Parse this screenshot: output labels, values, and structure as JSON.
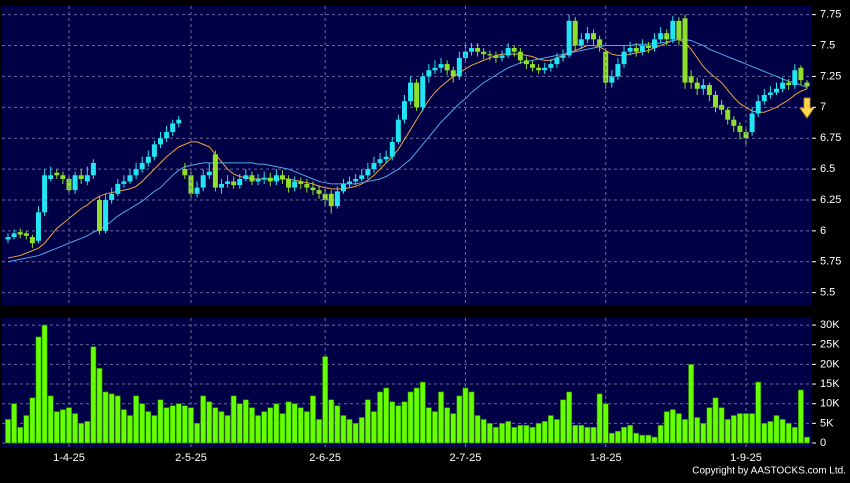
{
  "copyright": "Copyright by AASTOCKS.com Ltd.",
  "chart_data": [
    {
      "type": "candlestick",
      "up_color": "#22e4f2",
      "down_color": "#8ee02a",
      "grid": true,
      "ylim": [
        5.4,
        7.82
      ],
      "yticks": [
        5.5,
        5.75,
        6,
        6.25,
        6.5,
        6.75,
        7,
        7.25,
        7.5,
        7.75
      ],
      "open": [
        5.93,
        5.95,
        5.99,
        5.98,
        5.95,
        5.92,
        6.15,
        6.42,
        6.47,
        6.45,
        6.42,
        6.33,
        6.45,
        6.4,
        6.45,
        6.25,
        6.0,
        6.25,
        6.3,
        6.38,
        6.4,
        6.45,
        6.5,
        6.55,
        6.6,
        6.7,
        6.75,
        6.8,
        6.87,
        6.5,
        6.45,
        6.3,
        6.35,
        6.45,
        6.62,
        6.35,
        6.38,
        6.4,
        6.37,
        6.42,
        6.45,
        6.4,
        6.42,
        6.43,
        6.4,
        6.45,
        6.42,
        6.35,
        6.4,
        6.38,
        6.35,
        6.33,
        6.3,
        6.3,
        6.2,
        6.32,
        6.38,
        6.4,
        6.42,
        6.45,
        6.5,
        6.55,
        6.58,
        6.6,
        6.72,
        6.9,
        7.05,
        7.2,
        7.0,
        7.25,
        7.3,
        7.32,
        7.35,
        7.3,
        7.25,
        7.4,
        7.45,
        7.48,
        7.45,
        7.43,
        7.42,
        7.4,
        7.42,
        7.48,
        7.45,
        7.38,
        7.35,
        7.32,
        7.3,
        7.32,
        7.35,
        7.4,
        7.42,
        7.7,
        7.5,
        7.55,
        7.6,
        7.55,
        7.45,
        7.2,
        7.25,
        7.35,
        7.45,
        7.48,
        7.45,
        7.5,
        7.48,
        7.55,
        7.6,
        7.55,
        7.7,
        7.72,
        7.25,
        7.2,
        7.15,
        7.18,
        7.1,
        7.02,
        6.98,
        6.9,
        6.85,
        6.8,
        6.8,
        6.95,
        7.05,
        7.1,
        7.12,
        7.15,
        7.2,
        7.18,
        7.32,
        7.2
      ],
      "high": [
        5.98,
        6.01,
        6.02,
        6.0,
        5.97,
        6.2,
        6.5,
        6.52,
        6.5,
        6.48,
        6.45,
        6.48,
        6.5,
        6.52,
        6.58,
        6.28,
        6.3,
        6.35,
        6.42,
        6.45,
        6.5,
        6.55,
        6.6,
        6.65,
        6.73,
        6.8,
        6.85,
        6.9,
        6.93,
        6.55,
        6.48,
        6.4,
        6.5,
        6.55,
        6.65,
        6.42,
        6.45,
        6.44,
        6.46,
        6.5,
        6.48,
        6.46,
        6.48,
        6.47,
        6.5,
        6.49,
        6.45,
        6.44,
        6.43,
        6.42,
        6.4,
        6.37,
        6.34,
        6.33,
        6.36,
        6.42,
        6.44,
        6.46,
        6.5,
        6.55,
        6.6,
        6.63,
        6.65,
        6.76,
        6.94,
        7.1,
        7.25,
        7.23,
        7.28,
        7.35,
        7.38,
        7.4,
        7.38,
        7.33,
        7.45,
        7.5,
        7.52,
        7.52,
        7.48,
        7.46,
        7.45,
        7.46,
        7.52,
        7.5,
        7.48,
        7.41,
        7.38,
        7.35,
        7.36,
        7.39,
        7.44,
        7.47,
        7.75,
        7.73,
        7.6,
        7.65,
        7.63,
        7.58,
        7.48,
        7.3,
        7.4,
        7.5,
        7.53,
        7.52,
        7.55,
        7.53,
        7.6,
        7.65,
        7.63,
        7.74,
        7.73,
        7.75,
        7.3,
        7.24,
        7.23,
        7.2,
        7.13,
        7.06,
        7.0,
        6.93,
        6.88,
        6.83,
        7.0,
        7.1,
        7.15,
        7.17,
        7.2,
        7.24,
        7.23,
        7.35,
        7.34,
        7.22
      ],
      "low": [
        5.9,
        5.93,
        5.94,
        5.93,
        5.86,
        5.9,
        6.12,
        6.4,
        6.42,
        6.38,
        6.3,
        6.3,
        6.38,
        6.37,
        6.42,
        5.97,
        5.98,
        6.22,
        6.28,
        6.35,
        6.38,
        6.42,
        6.47,
        6.52,
        6.57,
        6.67,
        6.72,
        6.77,
        6.84,
        6.42,
        6.27,
        6.27,
        6.32,
        6.42,
        6.32,
        6.3,
        6.35,
        6.34,
        6.34,
        6.4,
        6.37,
        6.37,
        6.38,
        6.36,
        6.37,
        6.38,
        6.31,
        6.32,
        6.34,
        6.31,
        6.29,
        6.26,
        6.2,
        6.14,
        6.18,
        6.3,
        6.35,
        6.37,
        6.4,
        6.42,
        6.47,
        6.52,
        6.55,
        6.57,
        6.7,
        6.87,
        7.02,
        6.97,
        6.97,
        7.2,
        7.27,
        7.28,
        7.26,
        7.2,
        7.22,
        7.36,
        7.42,
        7.41,
        7.39,
        7.38,
        7.36,
        7.37,
        7.4,
        7.41,
        7.35,
        7.31,
        7.29,
        7.27,
        7.27,
        7.29,
        7.32,
        7.37,
        7.4,
        7.46,
        7.47,
        7.52,
        7.5,
        7.45,
        7.15,
        7.16,
        7.22,
        7.32,
        7.42,
        7.41,
        7.42,
        7.44,
        7.45,
        7.52,
        7.5,
        7.52,
        7.5,
        7.15,
        7.15,
        7.1,
        7.1,
        7.05,
        6.96,
        6.94,
        6.86,
        6.8,
        6.74,
        6.7,
        6.77,
        6.92,
        7.02,
        7.07,
        7.1,
        7.12,
        7.14,
        7.15,
        7.18,
        7.15
      ],
      "close": [
        5.95,
        5.98,
        5.97,
        5.96,
        5.9,
        6.15,
        6.45,
        6.45,
        6.45,
        6.42,
        6.33,
        6.45,
        6.42,
        6.45,
        6.55,
        6.0,
        6.25,
        6.3,
        6.38,
        6.4,
        6.45,
        6.5,
        6.55,
        6.6,
        6.7,
        6.75,
        6.8,
        6.87,
        6.9,
        6.45,
        6.3,
        6.35,
        6.45,
        6.48,
        6.35,
        6.38,
        6.4,
        6.37,
        6.42,
        6.45,
        6.4,
        6.42,
        6.43,
        6.4,
        6.45,
        6.42,
        6.35,
        6.4,
        6.38,
        6.35,
        6.33,
        6.3,
        6.25,
        6.2,
        6.32,
        6.38,
        6.4,
        6.42,
        6.45,
        6.5,
        6.55,
        6.58,
        6.6,
        6.72,
        6.9,
        7.05,
        7.2,
        7.0,
        7.25,
        7.3,
        7.32,
        7.35,
        7.3,
        7.25,
        7.4,
        7.45,
        7.48,
        7.45,
        7.43,
        7.42,
        7.4,
        7.42,
        7.48,
        7.45,
        7.38,
        7.35,
        7.32,
        7.3,
        7.32,
        7.35,
        7.4,
        7.42,
        7.7,
        7.5,
        7.55,
        7.6,
        7.55,
        7.5,
        7.2,
        7.25,
        7.35,
        7.45,
        7.48,
        7.45,
        7.5,
        7.48,
        7.55,
        7.6,
        7.55,
        7.7,
        7.55,
        7.2,
        7.2,
        7.15,
        7.18,
        7.1,
        7.0,
        6.98,
        6.9,
        6.85,
        6.8,
        6.75,
        6.95,
        7.05,
        7.1,
        7.12,
        7.15,
        7.2,
        7.18,
        7.3,
        7.22,
        7.17
      ],
      "series": [
        {
          "color": "#f0a040",
          "values": [
            5.78,
            5.79,
            5.8,
            5.82,
            5.84,
            5.86,
            5.9,
            5.96,
            6.02,
            6.06,
            6.1,
            6.14,
            6.18,
            6.21,
            6.25,
            6.28,
            6.3,
            6.31,
            6.32,
            6.33,
            6.34,
            6.36,
            6.4,
            6.45,
            6.5,
            6.55,
            6.6,
            6.64,
            6.68,
            6.7,
            6.72,
            6.72,
            6.7,
            6.68,
            6.62,
            6.56,
            6.5,
            6.46,
            6.44,
            6.43,
            6.42,
            6.42,
            6.42,
            6.42,
            6.42,
            6.42,
            6.42,
            6.41,
            6.4,
            6.39,
            6.38,
            6.36,
            6.35,
            6.34,
            6.34,
            6.34,
            6.35,
            6.36,
            6.38,
            6.41,
            6.45,
            6.5,
            6.55,
            6.6,
            6.66,
            6.74,
            6.82,
            6.9,
            6.98,
            7.06,
            7.12,
            7.17,
            7.21,
            7.25,
            7.28,
            7.31,
            7.34,
            7.36,
            7.38,
            7.4,
            7.42,
            7.43,
            7.43,
            7.43,
            7.43,
            7.42,
            7.41,
            7.39,
            7.38,
            7.38,
            7.4,
            7.42,
            7.44,
            7.46,
            7.48,
            7.5,
            7.5,
            7.49,
            7.46,
            7.43,
            7.42,
            7.42,
            7.43,
            7.44,
            7.45,
            7.46,
            7.48,
            7.5,
            7.52,
            7.54,
            7.55,
            7.52,
            7.47,
            7.4,
            7.33,
            7.28,
            7.24,
            7.2,
            7.14,
            7.08,
            7.03,
            7.0,
            6.97,
            6.96,
            6.96,
            6.98,
            7.0,
            7.03,
            7.06,
            7.1,
            7.13,
            7.15
          ]
        },
        {
          "color": "#4fa8e8",
          "values": [
            5.75,
            5.76,
            5.77,
            5.78,
            5.79,
            5.8,
            5.82,
            5.84,
            5.86,
            5.88,
            5.9,
            5.92,
            5.94,
            5.96,
            5.99,
            6.01,
            6.04,
            6.08,
            6.12,
            6.15,
            6.18,
            6.21,
            6.24,
            6.28,
            6.32,
            6.35,
            6.4,
            6.45,
            6.49,
            6.52,
            6.53,
            6.54,
            6.55,
            6.55,
            6.55,
            6.55,
            6.55,
            6.55,
            6.55,
            6.55,
            6.55,
            6.54,
            6.54,
            6.53,
            6.52,
            6.51,
            6.5,
            6.48,
            6.46,
            6.44,
            6.42,
            6.4,
            6.39,
            6.38,
            6.38,
            6.38,
            6.38,
            6.38,
            6.39,
            6.4,
            6.41,
            6.42,
            6.44,
            6.47,
            6.5,
            6.54,
            6.58,
            6.64,
            6.7,
            6.76,
            6.82,
            6.88,
            6.93,
            6.98,
            7.03,
            7.07,
            7.12,
            7.16,
            7.2,
            7.23,
            7.26,
            7.29,
            7.32,
            7.34,
            7.36,
            7.37,
            7.38,
            7.39,
            7.4,
            7.41,
            7.42,
            7.43,
            7.44,
            7.45,
            7.46,
            7.47,
            7.48,
            7.49,
            7.5,
            7.5,
            7.5,
            7.5,
            7.5,
            7.51,
            7.51,
            7.51,
            7.52,
            7.52,
            7.53,
            7.54,
            7.55,
            7.55,
            7.54,
            7.52,
            7.5,
            7.47,
            7.45,
            7.43,
            7.41,
            7.39,
            7.37,
            7.35,
            7.33,
            7.31,
            7.29,
            7.27,
            7.25,
            7.23,
            7.21,
            7.2,
            7.18,
            7.16
          ]
        }
      ]
    },
    {
      "type": "bar",
      "color": "#66ff00",
      "grid": true,
      "ylim": [
        0,
        31800
      ],
      "yticks": [
        0,
        {
          "value": 5000,
          "label": "5K"
        },
        {
          "value": 10000,
          "label": "10K"
        },
        {
          "value": 15000,
          "label": "15K"
        },
        {
          "value": 20000,
          "label": "20K"
        },
        {
          "value": 25000,
          "label": "25K"
        },
        {
          "value": 30000,
          "label": "30K"
        }
      ],
      "categories": [
        null,
        null,
        null,
        null,
        null,
        null,
        null,
        null,
        null,
        null,
        "1-4-25",
        null,
        null,
        null,
        null,
        null,
        null,
        null,
        null,
        null,
        null,
        null,
        null,
        null,
        null,
        null,
        null,
        null,
        null,
        null,
        "2-5-25",
        null,
        null,
        null,
        null,
        null,
        null,
        null,
        null,
        null,
        null,
        null,
        null,
        null,
        null,
        null,
        null,
        null,
        null,
        null,
        null,
        null,
        "2-6-25",
        null,
        null,
        null,
        null,
        null,
        null,
        null,
        null,
        null,
        null,
        null,
        null,
        null,
        null,
        null,
        null,
        null,
        null,
        null,
        null,
        null,
        null,
        "2-7-25",
        null,
        null,
        null,
        null,
        null,
        null,
        null,
        null,
        null,
        null,
        null,
        null,
        null,
        null,
        null,
        null,
        null,
        null,
        null,
        null,
        null,
        null,
        "1-8-25",
        null,
        null,
        null,
        null,
        null,
        null,
        null,
        null,
        null,
        null,
        null,
        null,
        null,
        null,
        null,
        null,
        null,
        null,
        null,
        null,
        null,
        null,
        "1-9-25",
        null,
        null,
        null,
        null,
        null,
        null,
        null,
        null,
        null,
        null
      ],
      "values": [
        6000,
        10000,
        4000,
        7000,
        11500,
        27000,
        30000,
        12000,
        8000,
        8500,
        9000,
        7500,
        5000,
        5500,
        24500,
        19000,
        13000,
        12500,
        12000,
        8500,
        7000,
        12000,
        10000,
        8000,
        7000,
        11000,
        9000,
        9500,
        10000,
        9500,
        9000,
        5000,
        12000,
        10500,
        9000,
        8000,
        7000,
        12000,
        10000,
        11000,
        9000,
        7000,
        8000,
        9000,
        10000,
        7500,
        10500,
        10000,
        9000,
        8000,
        12000,
        6000,
        22000,
        11000,
        9500,
        7000,
        6000,
        5000,
        6500,
        11000,
        8000,
        13000,
        14000,
        10500,
        9500,
        10500,
        13000,
        14000,
        15500,
        9000,
        8000,
        13000,
        9000,
        7500,
        12000,
        14000,
        13000,
        7000,
        6000,
        5000,
        4000,
        5000,
        5500,
        4000,
        4500,
        4500,
        4000,
        5000,
        5500,
        7000,
        6000,
        11000,
        13000,
        4500,
        4500,
        4000,
        4000,
        12500,
        10000,
        2500,
        3000,
        4000,
        4500,
        2500,
        2000,
        2000,
        1500,
        4500,
        8000,
        8500,
        7500,
        6000,
        20000,
        6500,
        5000,
        9000,
        11500,
        9000,
        6000,
        7000,
        7500,
        7500,
        7500,
        15500,
        5000,
        5500,
        7000,
        6000,
        5000,
        4000,
        13500,
        1500
      ]
    }
  ]
}
